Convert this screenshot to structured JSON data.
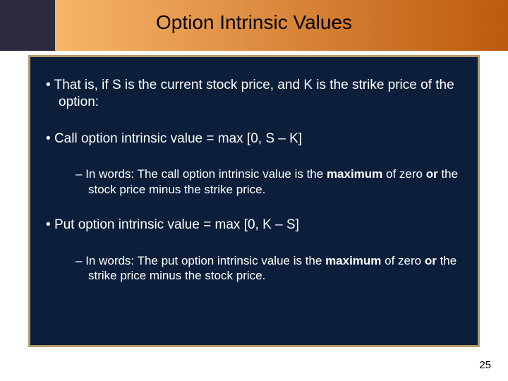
{
  "colors": {
    "stripe_dark": "#2c2a3f",
    "stripe_orange_left": "#f7b56a",
    "stripe_orange_right": "#bd5a0e",
    "box_bg": "#0b1f3a",
    "box_border": "#b49a6a",
    "title_color": "#000000",
    "body_text": "#ffffff"
  },
  "title": "Option Intrinsic Values",
  "bullets": {
    "intro": "That is, if S is the current stock price, and K is the strike price of the option:",
    "call_formula": "Call option intrinsic value = max [0, S – K]",
    "call_words_a": "In words: The call option intrinsic value is the ",
    "call_words_b": "maximum",
    "call_words_c": " of zero ",
    "call_words_d": "or",
    "call_words_e": " the stock price minus the strike price.",
    "put_formula": "Put option intrinsic value = max [0, K – S]",
    "put_words_a": "In words: The put option intrinsic value is the ",
    "put_words_b": "maximum",
    "put_words_c": " of zero ",
    "put_words_d": "or",
    "put_words_e": " the strike price minus the stock price."
  },
  "page_number": "25"
}
